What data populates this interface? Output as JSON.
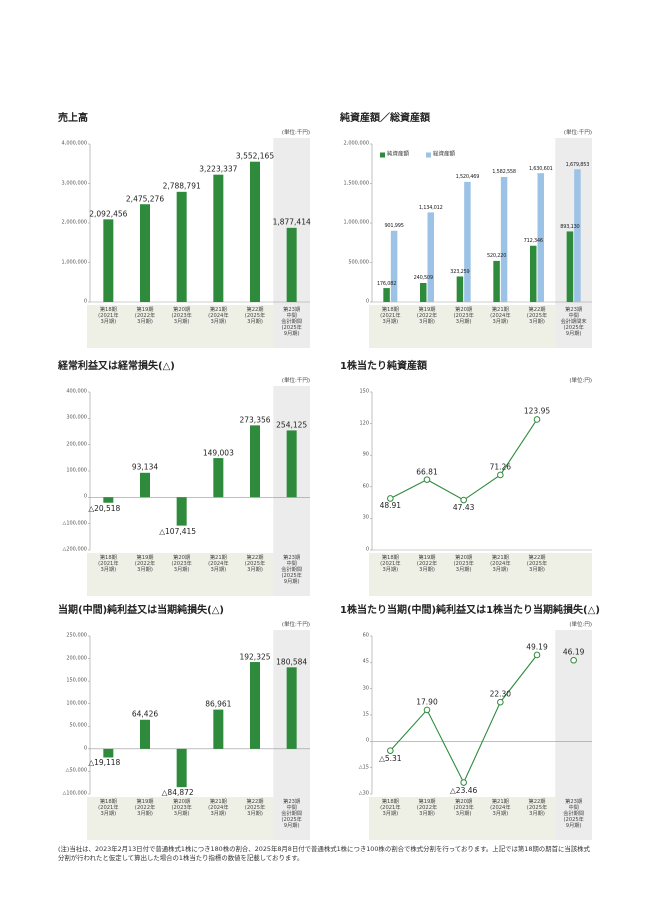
{
  "chart_data": [
    {
      "type": "bar",
      "title": "売上高",
      "unit": "(単位:千円)",
      "categories": [
        "第18期\n(2021年\n3月期)",
        "第19期\n(2022年\n3月期)",
        "第20期\n(2023年\n3月期)",
        "第21期\n(2024年\n3月期)",
        "第22期\n(2025年\n3月期)",
        "第23期\n中間\n会計期間\n(2025年\n9月期)"
      ],
      "values": [
        2092456,
        2475276,
        2788791,
        3223337,
        3552165,
        1877414
      ],
      "value_labels": [
        "2,092,456",
        "2,475,276",
        "2,788,791",
        "3,223,337",
        "3,552,165",
        "1,877,414"
      ],
      "color": "#2e8b3c",
      "ylim": [
        0,
        4000000
      ],
      "yticks": [
        0,
        {
          "value": 1000000,
          "label": "1,000,000"
        },
        {
          "value": 2000000,
          "label": "2,000,000"
        },
        {
          "value": 3000000,
          "label": "3,000,000"
        },
        {
          "value": 4000000,
          "label": "4,000,000"
        }
      ]
    },
    {
      "type": "grouped_bar",
      "title": "純資産額／総資産額",
      "unit": "(単位:千円)",
      "categories": [
        "第18期\n(2021年\n3月期)",
        "第19期\n(2022年\n3月期)",
        "第20期\n(2023年\n3月期)",
        "第21期\n(2024年\n3月期)",
        "第22期\n(2025年\n3月期)",
        "第23期\n中間\n会計期間末\n(2025年\n9月期)"
      ],
      "series": [
        {
          "name": "純資産額",
          "color": "#2e8b3c",
          "values": [
            176082,
            240509,
            323259,
            520220,
            712346,
            893130
          ],
          "value_labels": [
            "176,082",
            "240,509",
            "323,259",
            "520,220",
            "712,346",
            "893,130"
          ]
        },
        {
          "name": "総資産額",
          "color": "#9cc3e6",
          "values": [
            901995,
            1134012,
            1520469,
            1582558,
            1630601,
            1679853
          ],
          "value_labels": [
            "901,995",
            "1,134,012",
            "1,520,469",
            "1,582,558",
            "1,630,601",
            "1,679,853"
          ]
        }
      ],
      "legend": "top-left",
      "ylim": [
        0,
        2000000
      ],
      "yticks": [
        0,
        {
          "value": 500000,
          "label": "500,000"
        },
        {
          "value": 1000000,
          "label": "1,000,000"
        },
        {
          "value": 1500000,
          "label": "1,500,000"
        },
        {
          "value": 2000000,
          "label": "2,000,000"
        }
      ]
    },
    {
      "type": "bar",
      "title": "経常利益又は経常損失(△)",
      "unit": "(単位:千円)",
      "categories": [
        "第18期\n(2021年\n3月期)",
        "第19期\n(2022年\n3月期)",
        "第20期\n(2023年\n3月期)",
        "第21期\n(2024年\n3月期)",
        "第22期\n(2025年\n3月期)",
        "第23期\n中間\n会計期間\n(2025年\n9月期)"
      ],
      "values": [
        -20518,
        93134,
        -107415,
        149003,
        273356,
        254125
      ],
      "value_labels": [
        "△20,518",
        "93,134",
        "△107,415",
        "149,003",
        "273,356",
        "254,125"
      ],
      "color": "#2e8b3c",
      "ylim": [
        -200000,
        400000
      ],
      "yticks": [
        {
          "value": -200000,
          "label": "△200,000"
        },
        {
          "value": -100000,
          "label": "△100,000"
        },
        0,
        {
          "value": 100000,
          "label": "100,000"
        },
        {
          "value": 200000,
          "label": "200,000"
        },
        {
          "value": 300000,
          "label": "300,000"
        },
        {
          "value": 400000,
          "label": "400,000"
        }
      ]
    },
    {
      "type": "line",
      "title": "1株当たり純資産額",
      "unit": "(単位:円)",
      "categories": [
        "第18期\n(2021年\n3月期)",
        "第19期\n(2022年\n3月期)",
        "第20期\n(2023年\n3月期)",
        "第21期\n(2024年\n3月期)",
        "第22期\n(2025年\n3月期)"
      ],
      "series": [
        {
          "color": "#2e8b3c",
          "values": [
            48.91,
            66.81,
            47.43,
            71.26,
            123.95
          ]
        }
      ],
      "ylim": [
        0,
        150
      ],
      "yticks": [
        0,
        30,
        60,
        90,
        120,
        150
      ]
    },
    {
      "type": "bar",
      "title": "当期(中間)純利益又は当期純損失(△)",
      "unit": "(単位:千円)",
      "categories": [
        "第18期\n(2021年\n3月期)",
        "第19期\n(2022年\n3月期)",
        "第20期\n(2023年\n3月期)",
        "第21期\n(2024年\n3月期)",
        "第22期\n(2025年\n3月期)",
        "第23期\n中間\n会計期間\n(2025年\n9月期)"
      ],
      "values": [
        -19118,
        64426,
        -84872,
        86961,
        192325,
        180584
      ],
      "value_labels": [
        "△19,118",
        "64,426",
        "△84,872",
        "86,961",
        "192,325",
        "180,584"
      ],
      "color": "#2e8b3c",
      "ylim": [
        -100000,
        250000
      ],
      "yticks": [
        {
          "value": -100000,
          "label": "△100,000"
        },
        {
          "value": -50000,
          "label": "△50,000"
        },
        0,
        {
          "value": 50000,
          "label": "50,000"
        },
        {
          "value": 100000,
          "label": "100,000"
        },
        {
          "value": 150000,
          "label": "150,000"
        },
        {
          "value": 200000,
          "label": "200,000"
        },
        {
          "value": 250000,
          "label": "250,000"
        }
      ]
    },
    {
      "type": "line",
      "title": "1株当たり当期(中間)純利益又は1株当たり当期純損失(△)",
      "unit": "(単位:円)",
      "categories": [
        "第18期\n(2021年\n3月期)",
        "第19期\n(2022年\n3月期)",
        "第20期\n(2023年\n3月期)",
        "第21期\n(2024年\n3月期)",
        "第22期\n(2025年\n3月期)",
        "第23期\n中間\n会計期間\n(2025年\n9月期)"
      ],
      "series": [
        {
          "color": "#2e8b3c",
          "values": [
            -5.31,
            17.9,
            -23.46,
            22.3,
            49.19,
            null
          ],
          "value_labels": [
            "△5.31",
            "17.90",
            "△23.46",
            "22.30",
            "49.19",
            null
          ]
        },
        {
          "color": "#2e8b3c",
          "values": [
            null,
            null,
            null,
            null,
            null,
            46.19
          ]
        }
      ],
      "ylim": [
        -30,
        60
      ],
      "yticks": [
        {
          "value": -30,
          "label": "△30"
        },
        {
          "value": -15,
          "label": "△15"
        },
        0,
        15,
        30,
        45,
        60
      ]
    }
  ],
  "note": "(注)当社は、2023年2月13日付で普通株式1株につき180株の割合、2025年8月8日付で普通株式1株につき100株の割合で株式分割を行っております。上記では第18期の期首に当該株式分割が行われたと仮定して算出した場合の1株当たり指標の数値を記載しております。"
}
